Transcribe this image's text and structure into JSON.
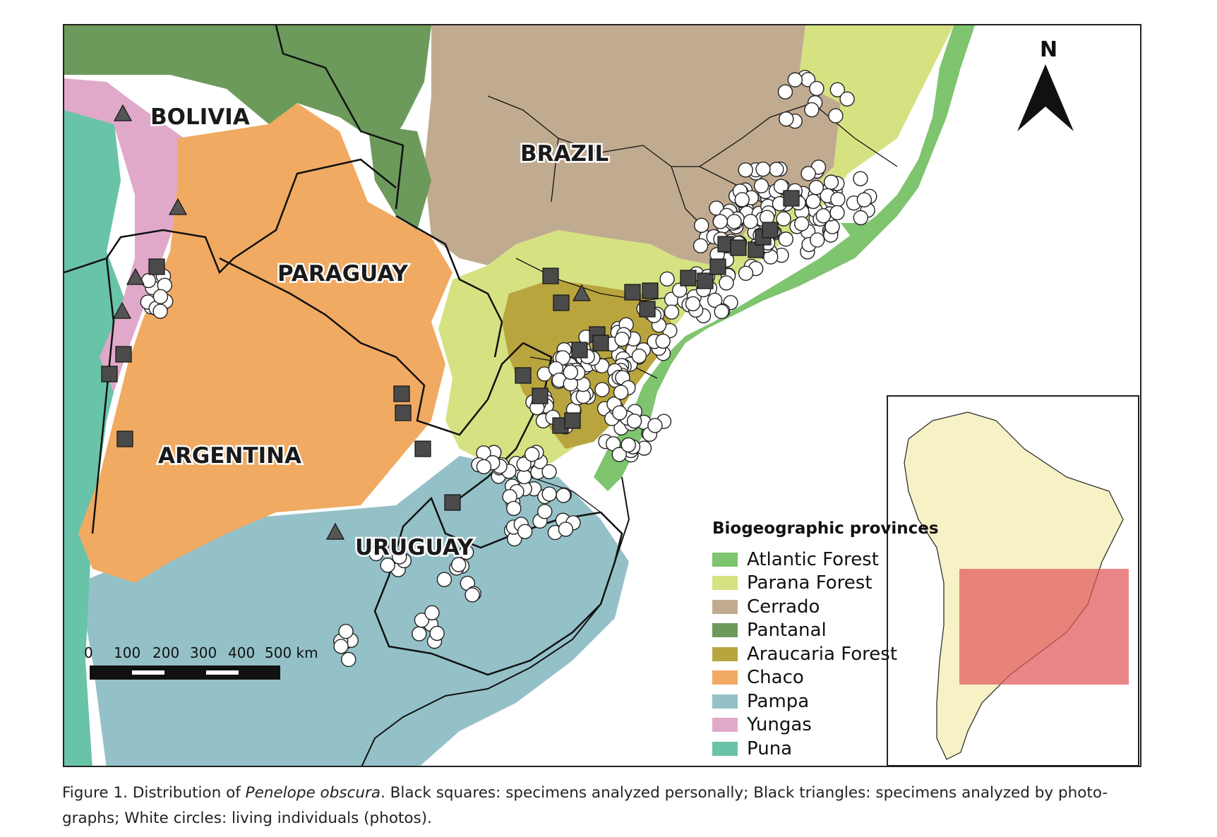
{
  "map": {
    "countries": [
      "BOLIVIA",
      "BRAZIL",
      "PARAGUAY",
      "ARGENTINA",
      "URUGUAY"
    ],
    "north_arrow": "N",
    "scale_bar": {
      "ticks": [
        "0",
        "100",
        "200",
        "300",
        "400",
        "500 km"
      ]
    },
    "legend": {
      "title": "Biogeographic provinces",
      "items": [
        {
          "label": "Atlantic Forest",
          "color": "#7fc46f"
        },
        {
          "label": "Parana Forest",
          "color": "#d6e281"
        },
        {
          "label": "Cerrado",
          "color": "#c1ab90"
        },
        {
          "label": "Pantanal",
          "color": "#6b9a5b"
        },
        {
          "label": "Araucaria Forest",
          "color": "#b9a53e"
        },
        {
          "label": "Chaco",
          "color": "#f0aa62"
        },
        {
          "label": "Pampa",
          "color": "#94c1c8"
        },
        {
          "label": "Yungas",
          "color": "#e0a9c9"
        },
        {
          "label": "Puna",
          "color": "#69c3a9"
        }
      ]
    },
    "inset": {
      "continent_color": "#f6f2c6",
      "highlight_color": "#e0585a"
    },
    "symbols": {
      "square": "specimens analyzed personally",
      "triangle": "specimens analyzed by photographs",
      "circle": "living individuals (photos)"
    }
  },
  "caption": {
    "label": "Figure 1. Distribution of ",
    "species": "Penelope obscura",
    "text": ". Black squares: specimens analyzed personally; Black triangles: specimens analyzed by photo-",
    "text2": "graphs; White circles: living individuals (photos)."
  }
}
